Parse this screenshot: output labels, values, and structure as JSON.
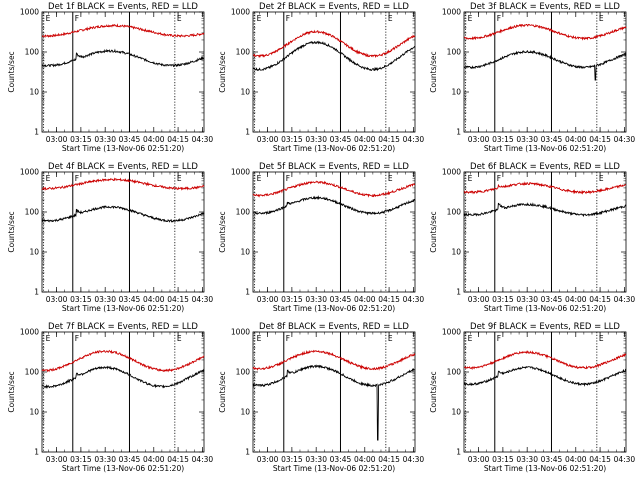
{
  "chart_data": [
    {
      "type": "line",
      "title": "Det 1f BLACK = Events, RED = LLD",
      "xlabel": "Start Time (13-Nov-06 02:51:20)",
      "ylabel": "Counts/sec",
      "yscale": "log",
      "ylim": [
        1,
        1000
      ],
      "xlim": [
        "02:51",
        "04:31"
      ],
      "xticks": [
        "03:00",
        "03:15",
        "03:30",
        "03:45",
        "04:00",
        "04:15",
        "04:30"
      ],
      "yticks": [
        "1",
        "10",
        "100",
        "1000"
      ],
      "markers": [
        {
          "label": "E",
          "time": "02:52",
          "style": "dotted"
        },
        {
          "label": "F",
          "time": "03:10",
          "style": "solid"
        },
        {
          "label": "",
          "time": "03:45",
          "style": "solid"
        },
        {
          "label": "E",
          "time": "04:13",
          "style": "dotted"
        }
      ],
      "series": [
        {
          "color": "#cc0000",
          "base": 340,
          "amp": 0.3,
          "trough": "02:53",
          "peak": "03:35",
          "spike": null,
          "gap": null
        },
        {
          "color": "#000000",
          "base": 70,
          "amp": 0.42,
          "trough": "02:55",
          "peak": "03:33",
          "spike": {
            "time": "03:12",
            "factor": 1.5
          },
          "gap": null
        }
      ]
    },
    {
      "type": "line",
      "title": "Det 2f BLACK = Events, RED = LLD",
      "xlabel": "Start Time (13-Nov-06 02:51:20)",
      "ylabel": "Counts/sec",
      "yscale": "log",
      "ylim": [
        1,
        1000
      ],
      "xlim": [
        "02:51",
        "04:31"
      ],
      "xticks": [
        "03:00",
        "03:15",
        "03:30",
        "03:45",
        "04:00",
        "04:15",
        "04:30"
      ],
      "yticks": [
        "1",
        "10",
        "100",
        "1000"
      ],
      "markers": [
        {
          "label": "E",
          "time": "02:52",
          "style": "dotted"
        },
        {
          "label": "F",
          "time": "03:10",
          "style": "solid"
        },
        {
          "label": "",
          "time": "03:45",
          "style": "solid"
        },
        {
          "label": "E",
          "time": "04:13",
          "style": "dotted"
        }
      ],
      "series": [
        {
          "color": "#cc0000",
          "base": 160,
          "amp": 0.7,
          "trough": "02:55",
          "peak": "03:30",
          "spike": null,
          "gap": null
        },
        {
          "color": "#000000",
          "base": 80,
          "amp": 0.78,
          "trough": "02:55",
          "peak": "03:30",
          "spike": null,
          "gap": null
        }
      ]
    },
    {
      "type": "line",
      "title": "Det 3f BLACK = Events, RED = LLD",
      "xlabel": "Start Time (13-Nov-06 02:51:20)",
      "ylabel": "Counts/sec",
      "yscale": "log",
      "ylim": [
        1,
        1000
      ],
      "xlim": [
        "02:51",
        "04:31"
      ],
      "xticks": [
        "03:00",
        "03:15",
        "03:30",
        "03:45",
        "04:00",
        "04:15",
        "04:30"
      ],
      "yticks": [
        "1",
        "10",
        "100",
        "1000"
      ],
      "markers": [
        {
          "label": "E",
          "time": "02:52",
          "style": "dotted"
        },
        {
          "label": "F",
          "time": "03:10",
          "style": "solid"
        },
        {
          "label": "",
          "time": "03:45",
          "style": "solid"
        },
        {
          "label": "E",
          "time": "04:13",
          "style": "dotted"
        }
      ],
      "series": [
        {
          "color": "#cc0000",
          "base": 320,
          "amp": 0.38,
          "trough": "02:55",
          "peak": "03:30",
          "spike": null,
          "gap": null
        },
        {
          "color": "#000000",
          "base": 65,
          "amp": 0.45,
          "trough": "02:55",
          "peak": "03:30",
          "spike": null,
          "gap": {
            "time": "04:12",
            "min": 20
          }
        }
      ]
    },
    {
      "type": "line",
      "title": "Det 4f BLACK = Events, RED = LLD",
      "xlabel": "Start Time (13-Nov-06 02:51:20)",
      "ylabel": "Counts/sec",
      "yscale": "log",
      "ylim": [
        1,
        1000
      ],
      "xlim": [
        "02:51",
        "04:31"
      ],
      "xticks": [
        "03:00",
        "03:15",
        "03:30",
        "03:45",
        "04:00",
        "04:15",
        "04:30"
      ],
      "yticks": [
        "1",
        "10",
        "100",
        "1000"
      ],
      "markers": [
        {
          "label": "E",
          "time": "02:52",
          "style": "dotted"
        },
        {
          "label": "F",
          "time": "03:10",
          "style": "solid"
        },
        {
          "label": "",
          "time": "03:45",
          "style": "solid"
        },
        {
          "label": "E",
          "time": "04:13",
          "style": "dotted"
        }
      ],
      "series": [
        {
          "color": "#cc0000",
          "base": 500,
          "amp": 0.26,
          "trough": "02:53",
          "peak": "03:35",
          "spike": null,
          "gap": null
        },
        {
          "color": "#000000",
          "base": 90,
          "amp": 0.4,
          "trough": "02:55",
          "peak": "03:33",
          "spike": {
            "time": "03:12",
            "factor": 1.4
          },
          "gap": null
        }
      ]
    },
    {
      "type": "line",
      "title": "Det 5f BLACK = Events, RED = LLD",
      "xlabel": "Start Time (13-Nov-06 02:51:20)",
      "ylabel": "Counts/sec",
      "yscale": "log",
      "ylim": [
        1,
        1000
      ],
      "xlim": [
        "02:51",
        "04:31"
      ],
      "xticks": [
        "03:00",
        "03:15",
        "03:30",
        "03:45",
        "04:00",
        "04:15",
        "04:30"
      ],
      "yticks": [
        "1",
        "10",
        "100",
        "1000"
      ],
      "markers": [
        {
          "label": "E",
          "time": "02:52",
          "style": "dotted"
        },
        {
          "label": "F",
          "time": "03:10",
          "style": "solid"
        },
        {
          "label": "",
          "time": "03:45",
          "style": "solid"
        },
        {
          "label": "E",
          "time": "04:13",
          "style": "dotted"
        }
      ],
      "series": [
        {
          "color": "#cc0000",
          "base": 380,
          "amp": 0.38,
          "trough": "02:55",
          "peak": "03:30",
          "spike": null,
          "gap": null
        },
        {
          "color": "#000000",
          "base": 145,
          "amp": 0.45,
          "trough": "02:55",
          "peak": "03:30",
          "spike": {
            "time": "03:12",
            "factor": 1.25
          },
          "gap": null
        }
      ]
    },
    {
      "type": "line",
      "title": "Det 6f BLACK = Events, RED = LLD",
      "xlabel": "Start Time (13-Nov-06 02:51:20)",
      "ylabel": "Counts/sec",
      "yscale": "log",
      "ylim": [
        1,
        1000
      ],
      "xlim": [
        "02:51",
        "04:31"
      ],
      "xticks": [
        "03:00",
        "03:15",
        "03:30",
        "03:45",
        "04:00",
        "04:15",
        "04:30"
      ],
      "yticks": [
        "1",
        "10",
        "100",
        "1000"
      ],
      "markers": [
        {
          "label": "E",
          "time": "02:52",
          "style": "dotted"
        },
        {
          "label": "F",
          "time": "03:10",
          "style": "solid"
        },
        {
          "label": "",
          "time": "03:45",
          "style": "solid"
        },
        {
          "label": "E",
          "time": "04:13",
          "style": "dotted"
        }
      ],
      "series": [
        {
          "color": "#cc0000",
          "base": 400,
          "amp": 0.25,
          "trough": "02:55",
          "peak": "03:30",
          "spike": {
            "time": "03:12",
            "factor": 1.2
          },
          "gap": null
        },
        {
          "color": "#000000",
          "base": 115,
          "amp": 0.3,
          "trough": "02:55",
          "peak": "03:30",
          "spike": {
            "time": "03:12",
            "factor": 1.6
          },
          "gap": null
        }
      ]
    },
    {
      "type": "line",
      "title": "Det 7f BLACK = Events, RED = LLD",
      "xlabel": "Start Time (13-Nov-06 02:51:20)",
      "ylabel": "Counts/sec",
      "yscale": "log",
      "ylim": [
        1,
        1000
      ],
      "xlim": [
        "02:51",
        "04:31"
      ],
      "xticks": [
        "03:00",
        "03:15",
        "03:30",
        "03:45",
        "04:00",
        "04:15",
        "04:30"
      ],
      "yticks": [
        "1",
        "10",
        "100",
        "1000"
      ],
      "markers": [
        {
          "label": "E",
          "time": "02:52",
          "style": "dotted"
        },
        {
          "label": "F",
          "time": "03:10",
          "style": "solid"
        },
        {
          "label": "",
          "time": "03:45",
          "style": "solid"
        },
        {
          "label": "E",
          "time": "04:13",
          "style": "dotted"
        }
      ],
      "series": [
        {
          "color": "#cc0000",
          "base": 190,
          "amp": 0.55,
          "trough": "02:53",
          "peak": "03:30",
          "spike": null,
          "gap": null
        },
        {
          "color": "#000000",
          "base": 75,
          "amp": 0.55,
          "trough": "02:55",
          "peak": "03:30",
          "spike": {
            "time": "03:12",
            "factor": 1.3
          },
          "gap": null
        }
      ]
    },
    {
      "type": "line",
      "title": "Det 8f BLACK = Events, RED = LLD",
      "xlabel": "Start Time (13-Nov-06 02:51:20)",
      "ylabel": "Counts/sec",
      "yscale": "log",
      "ylim": [
        1,
        1000
      ],
      "xlim": [
        "02:51",
        "04:31"
      ],
      "xticks": [
        "03:00",
        "03:15",
        "03:30",
        "03:45",
        "04:00",
        "04:15",
        "04:30"
      ],
      "yticks": [
        "1",
        "10",
        "100",
        "1000"
      ],
      "markers": [
        {
          "label": "E",
          "time": "02:52",
          "style": "dotted"
        },
        {
          "label": "F",
          "time": "03:10",
          "style": "solid"
        },
        {
          "label": "",
          "time": "03:45",
          "style": "solid"
        },
        {
          "label": "E",
          "time": "04:13",
          "style": "dotted"
        }
      ],
      "series": [
        {
          "color": "#cc0000",
          "base": 200,
          "amp": 0.5,
          "trough": "02:55",
          "peak": "03:30",
          "spike": null,
          "gap": null
        },
        {
          "color": "#000000",
          "base": 80,
          "amp": 0.55,
          "trough": "02:55",
          "peak": "03:30",
          "spike": {
            "time": "03:12",
            "factor": 1.5
          },
          "gap": {
            "time": "04:08",
            "min": 2
          }
        }
      ]
    },
    {
      "type": "line",
      "title": "Det 9f BLACK = Events, RED = LLD",
      "xlabel": "Start Time (13-Nov-06 02:51:20)",
      "ylabel": "Counts/sec",
      "yscale": "log",
      "ylim": [
        1,
        1000
      ],
      "xlim": [
        "02:51",
        "04:31"
      ],
      "xticks": [
        "03:00",
        "03:15",
        "03:30",
        "03:45",
        "04:00",
        "04:15",
        "04:30"
      ],
      "yticks": [
        "1",
        "10",
        "100",
        "1000"
      ],
      "markers": [
        {
          "label": "E",
          "time": "02:52",
          "style": "dotted"
        },
        {
          "label": "F",
          "time": "03:10",
          "style": "solid"
        },
        {
          "label": "",
          "time": "03:45",
          "style": "solid"
        },
        {
          "label": "E",
          "time": "04:13",
          "style": "dotted"
        }
      ],
      "series": [
        {
          "color": "#cc0000",
          "base": 200,
          "amp": 0.45,
          "trough": "02:55",
          "peak": "03:30",
          "spike": null,
          "gap": null
        },
        {
          "color": "#000000",
          "base": 80,
          "amp": 0.48,
          "trough": "02:55",
          "peak": "03:30",
          "spike": {
            "time": "03:12",
            "factor": 1.4
          },
          "gap": null
        }
      ]
    }
  ]
}
